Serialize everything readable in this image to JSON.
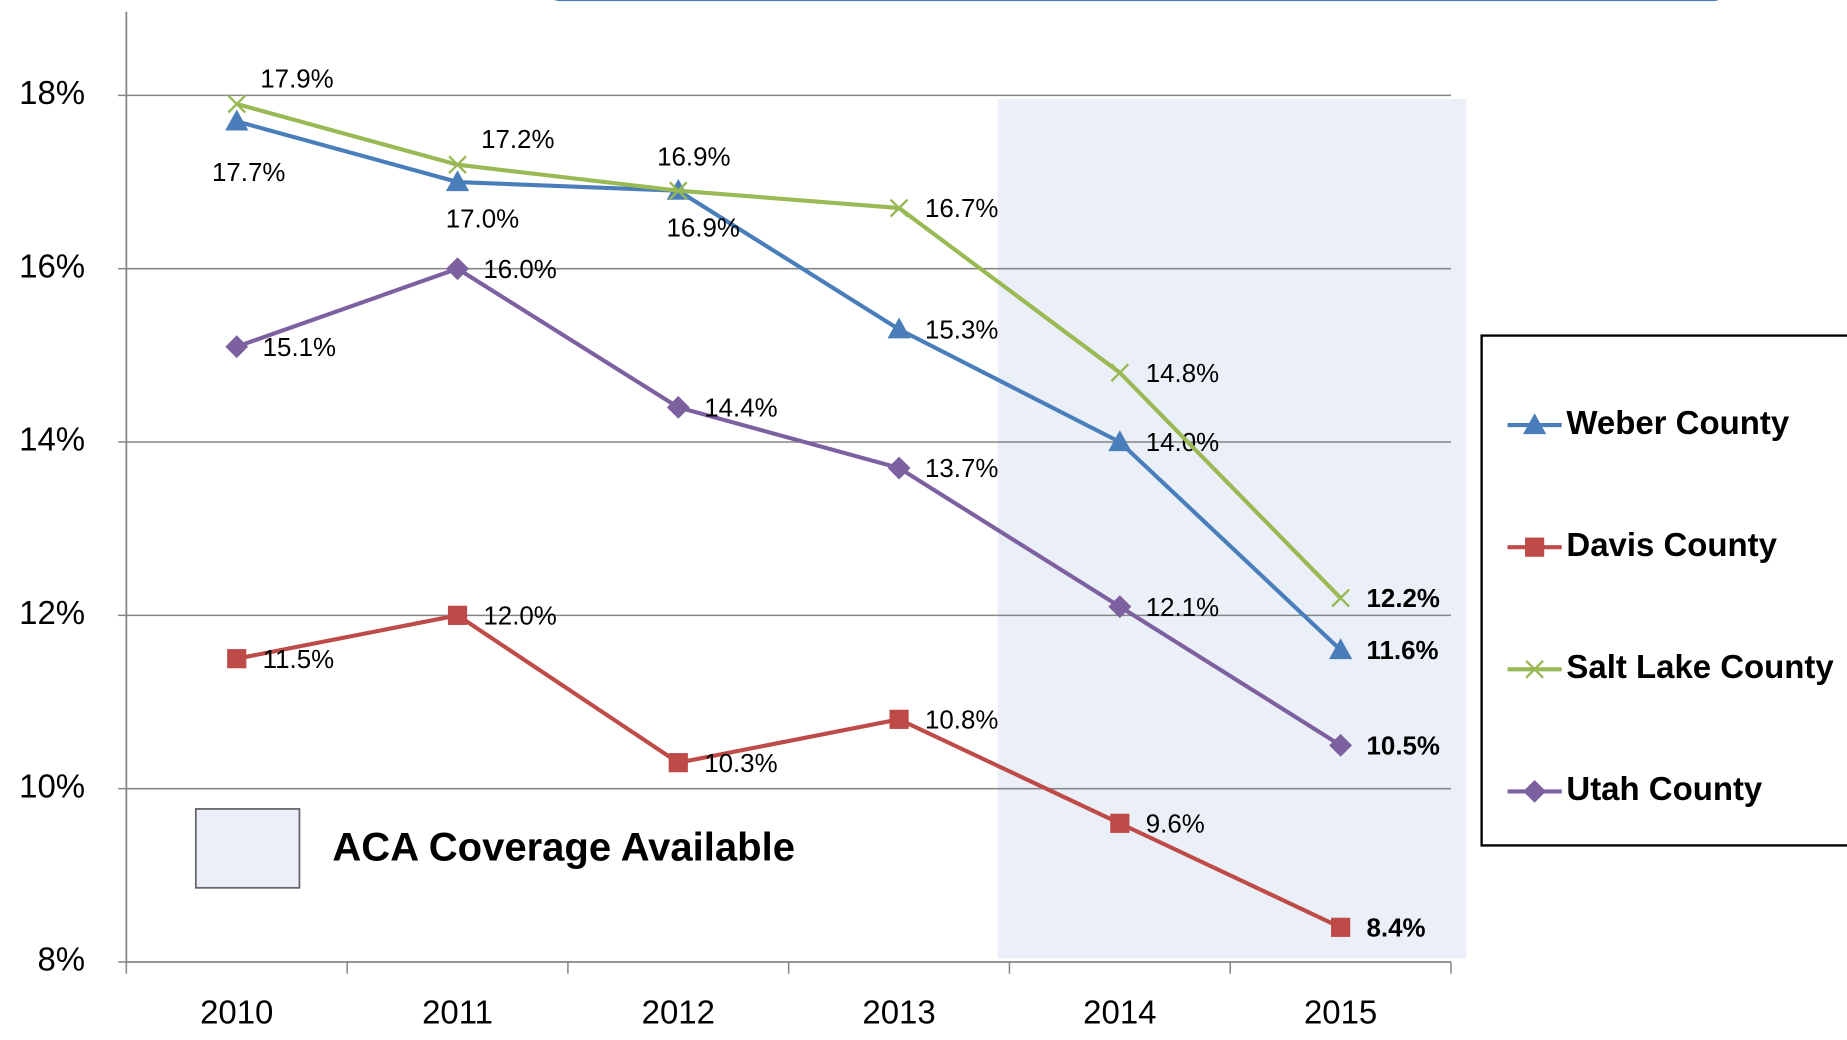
{
  "chart_data": {
    "type": "line",
    "categories": [
      "2010",
      "2011",
      "2012",
      "2013",
      "2014",
      "2015"
    ],
    "series": [
      {
        "name": "Weber County",
        "color": "#4a7ebb",
        "marker": "triangle",
        "values": [
          17.7,
          17.0,
          16.9,
          15.3,
          14.0,
          11.6
        ],
        "value_labels": [
          "17.7%",
          "17.0%",
          "16.9%",
          "15.3%",
          "14.0%",
          "11.6%"
        ]
      },
      {
        "name": "Davis County",
        "color": "#be4b48",
        "marker": "square",
        "values": [
          11.5,
          12.0,
          10.3,
          10.8,
          9.6,
          8.4
        ],
        "value_labels": [
          "11.5%",
          "12.0%",
          "10.3%",
          "10.8%",
          "9.6%",
          "8.4%"
        ]
      },
      {
        "name": "Salt Lake County",
        "color": "#98b954",
        "marker": "x",
        "values": [
          17.9,
          17.2,
          16.9,
          16.7,
          14.8,
          12.2
        ],
        "value_labels": [
          "17.9%",
          "17.2%",
          "16.9%",
          "16.7%",
          "14.8%",
          "12.2%"
        ]
      },
      {
        "name": "Utah County",
        "color": "#7d60a0",
        "marker": "diamond",
        "values": [
          15.1,
          16.0,
          14.4,
          13.7,
          12.1,
          10.5
        ],
        "value_labels": [
          "15.1%",
          "16.0%",
          "14.4%",
          "13.7%",
          "12.1%",
          "10.5%"
        ]
      }
    ],
    "ylim": [
      8,
      19
    ],
    "yticks": [
      {
        "value": 8,
        "label": "8%"
      },
      {
        "value": 10,
        "label": "10%"
      },
      {
        "value": 12,
        "label": "12%"
      },
      {
        "value": 14,
        "label": "14%"
      },
      {
        "value": 16,
        "label": "16%"
      },
      {
        "value": 18,
        "label": "18%"
      }
    ],
    "grid": true,
    "legend": "right",
    "annotation": "ACA Coverage Available",
    "shaded_color": "#ebf0f8"
  }
}
